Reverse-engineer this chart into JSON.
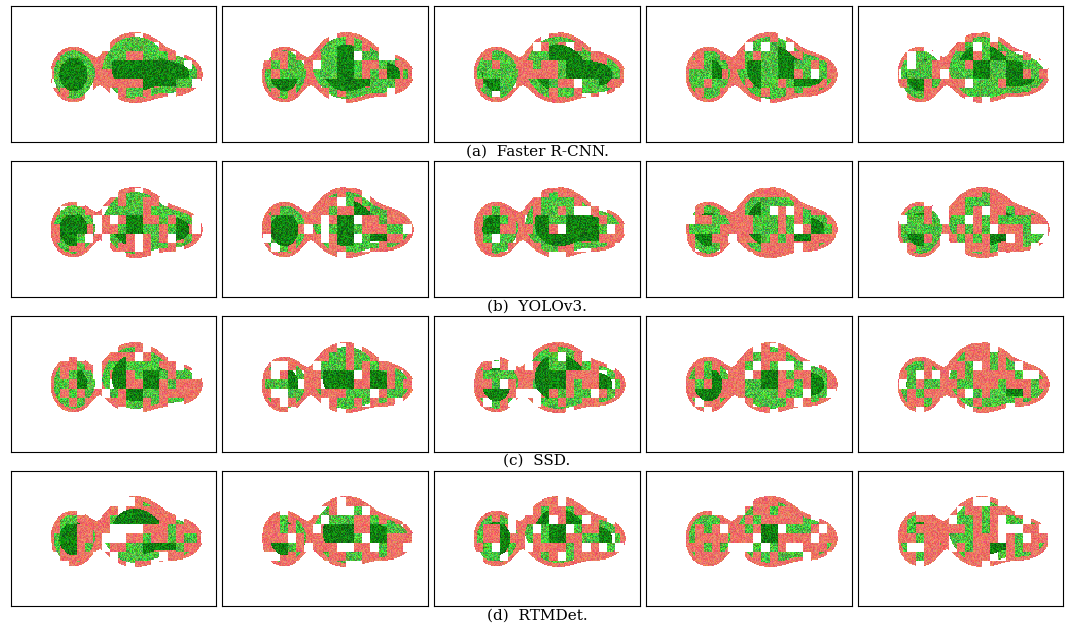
{
  "rows": 4,
  "cols": 5,
  "captions": [
    "(a)  Faster R-CNN.",
    "(b)  YOLOv3.",
    "(c)  SSD.",
    "(d)  RTMDet."
  ],
  "caption_fontsize": 11,
  "background_color": "#ffffff",
  "border_color": "#000000",
  "fig_width": 10.74,
  "fig_height": 6.28,
  "seeds": [
    [
      42,
      43,
      44,
      45,
      46
    ],
    [
      52,
      53,
      54,
      55,
      56
    ],
    [
      62,
      63,
      64,
      65,
      66
    ],
    [
      72,
      73,
      74,
      75,
      76
    ]
  ],
  "green_bias": [
    [
      0.65,
      0.55,
      0.6,
      0.55,
      0.55
    ],
    [
      0.4,
      0.38,
      0.42,
      0.38,
      0.4
    ],
    [
      0.35,
      0.37,
      0.4,
      0.35,
      0.37
    ],
    [
      0.28,
      0.3,
      0.32,
      0.28,
      0.3
    ]
  ]
}
